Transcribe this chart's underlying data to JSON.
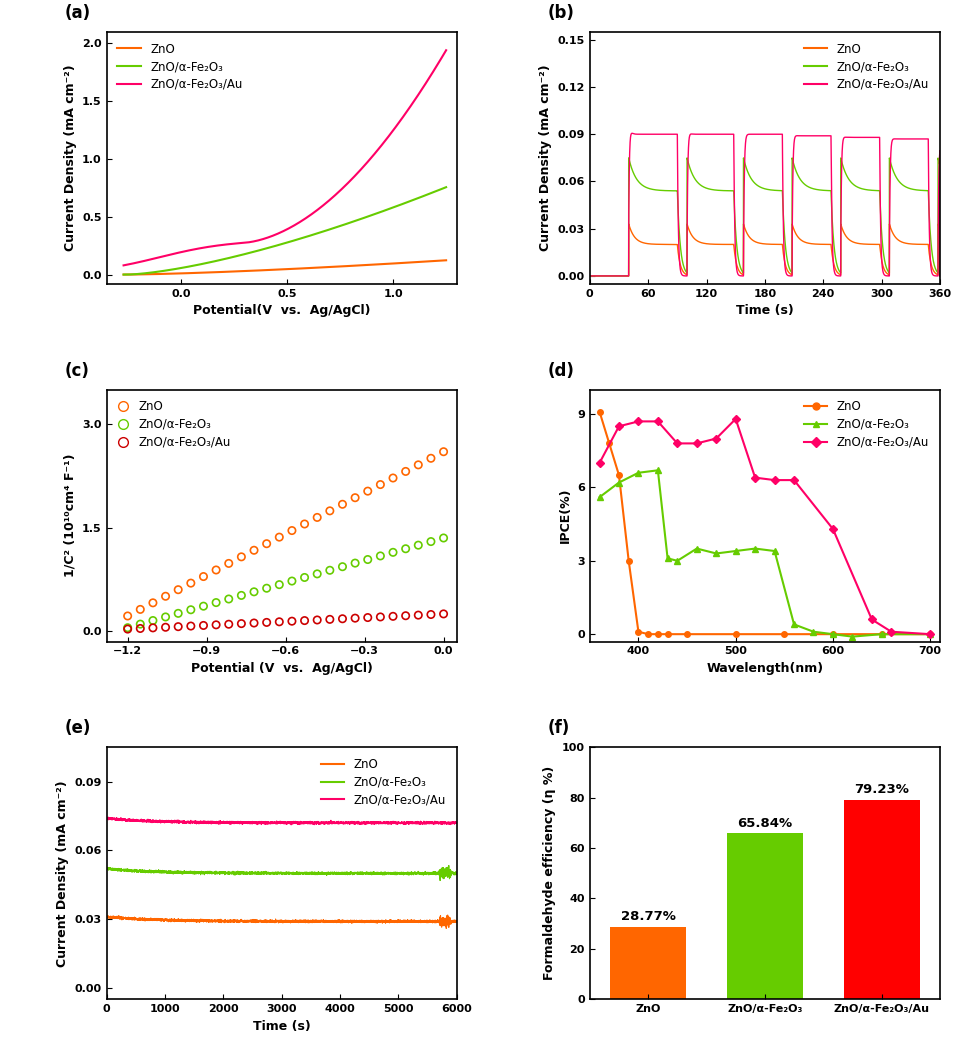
{
  "colors": {
    "orange": "#FF6600",
    "green": "#66CC00",
    "red": "#FF0066",
    "bar_red": "#FF0000"
  },
  "legend_labels": [
    "ZnO",
    "ZnO/α-Fe₂O₃",
    "ZnO/α-Fe₂O₃/Au"
  ],
  "panel_a": {
    "label": "(a)",
    "xlabel": "Potential(V  vs.  Ag/AgCl)",
    "ylabel": "Current Density (mA cm⁻²)",
    "xlim": [
      -0.35,
      1.3
    ],
    "ylim": [
      -0.08,
      2.1
    ],
    "xticks": [
      0.0,
      0.5,
      1.0
    ],
    "yticks": [
      0.0,
      0.5,
      1.0,
      1.5,
      2.0
    ]
  },
  "panel_b": {
    "label": "(b)",
    "xlabel": "Time (s)",
    "ylabel": "Current Density (mA cm⁻²)",
    "xlim": [
      0,
      360
    ],
    "ylim": [
      -0.005,
      0.155
    ],
    "xticks": [
      0,
      60,
      120,
      180,
      240,
      300,
      360
    ],
    "yticks": [
      0.0,
      0.03,
      0.06,
      0.09,
      0.12,
      0.15
    ]
  },
  "panel_c": {
    "label": "(c)",
    "xlabel": "Potential (V  vs.  Ag/AgCl)",
    "ylabel": "1/C² (10¹⁰cm⁴ F⁻¹)",
    "xlim": [
      -1.28,
      0.05
    ],
    "ylim": [
      -0.15,
      3.5
    ],
    "xticks": [
      -1.2,
      -0.9,
      -0.6,
      -0.3,
      0.0
    ],
    "yticks": [
      0.0,
      1.5,
      3.0
    ]
  },
  "panel_d": {
    "label": "(d)",
    "xlabel": "Wavelength(nm)",
    "ylabel": "IPCE(%)",
    "xlim": [
      350,
      710
    ],
    "ylim": [
      -0.3,
      10.0
    ],
    "xticks": [
      400,
      500,
      600,
      700
    ],
    "yticks": [
      0,
      3,
      6,
      9
    ]
  },
  "panel_e": {
    "label": "(e)",
    "xlabel": "Time (s)",
    "ylabel": "Current Density (mA cm⁻²)",
    "xlim": [
      0,
      6000
    ],
    "ylim": [
      -0.005,
      0.105
    ],
    "xticks": [
      0,
      1000,
      2000,
      3000,
      4000,
      5000,
      6000
    ],
    "yticks": [
      0.0,
      0.03,
      0.06,
      0.09
    ]
  },
  "panel_f": {
    "label": "(f)",
    "ylabel": "Formaldehyde efficiency (η %)",
    "xlim": [
      -0.5,
      2.5
    ],
    "ylim": [
      0,
      100
    ],
    "categories": [
      "ZnO",
      "ZnO/α-Fe₂O₃",
      "ZnO/α-Fe₂O₃/Au"
    ],
    "values": [
      28.77,
      65.84,
      79.23
    ],
    "bar_colors": [
      "#FF6600",
      "#66CC00",
      "#FF0000"
    ],
    "labels": [
      "28.77%",
      "65.84%",
      "79.23%"
    ],
    "yticks": [
      0,
      20,
      40,
      60,
      80,
      100
    ]
  }
}
